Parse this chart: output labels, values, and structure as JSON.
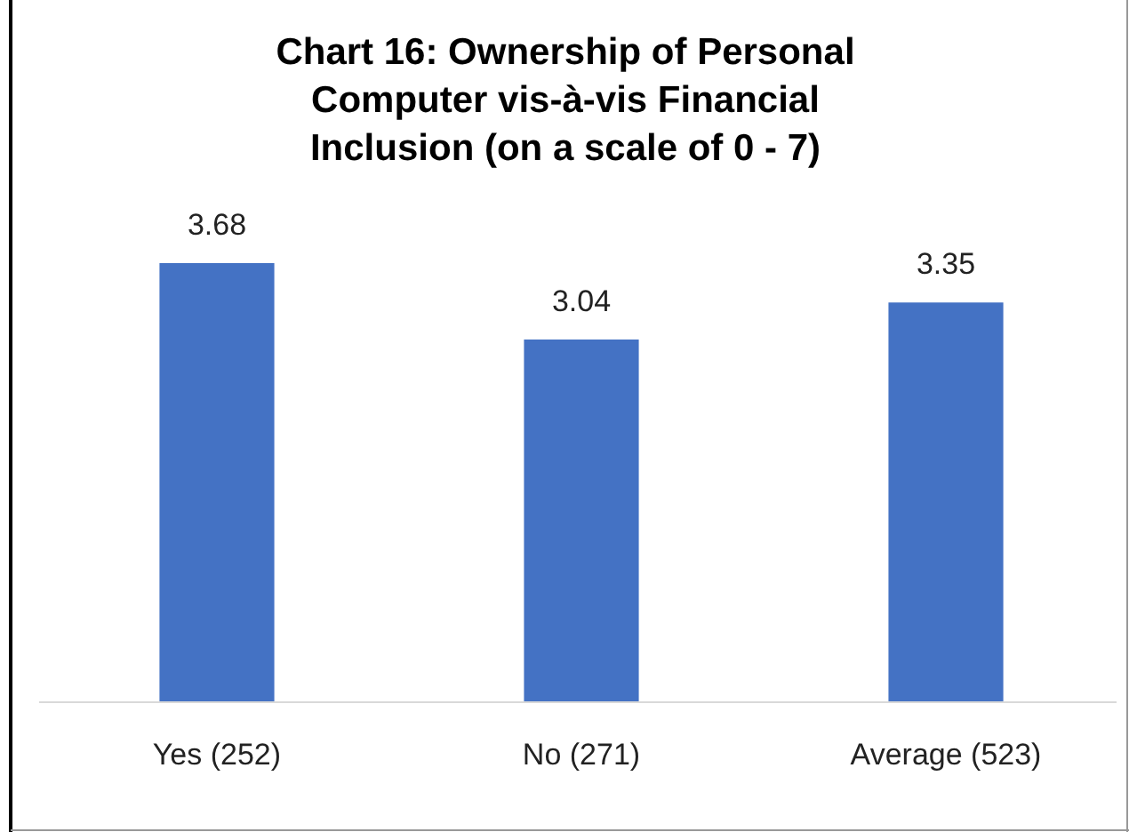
{
  "chart_data": {
    "type": "bar",
    "title": "Chart 16: Ownership of Personal Computer vis-à-vis Financial Inclusion (on a scale of 0 - 7)",
    "categories": [
      "Yes (252)",
      "No (271)",
      "Average (523)"
    ],
    "values": [
      3.68,
      3.04,
      3.35
    ],
    "color": "#4472c4",
    "data_labels": true
  }
}
